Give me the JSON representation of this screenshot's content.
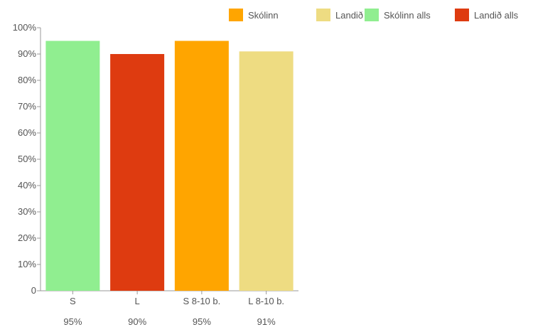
{
  "chart_data": {
    "type": "bar",
    "categories": [
      "S",
      "L",
      "S 8-10 b.",
      "L 8-10 b."
    ],
    "values": [
      95,
      90,
      95,
      91
    ],
    "value_labels": [
      "95%",
      "90%",
      "95%",
      "91%"
    ],
    "bar_series": [
      "Skólinn alls",
      "Landið alls",
      "Skólinn",
      "Landið"
    ],
    "ylim": [
      0,
      100
    ],
    "yticks": [
      0,
      10,
      20,
      30,
      40,
      50,
      60,
      70,
      80,
      90,
      100
    ],
    "ytick_labels": [
      "0",
      "10%",
      "20%",
      "30%",
      "40%",
      "50%",
      "60%",
      "70%",
      "80%",
      "90%",
      "100%"
    ],
    "legend": {
      "position": "top-right",
      "items": [
        {
          "label": "Skólinn",
          "color": "#ffa500"
        },
        {
          "label": "Landið",
          "color": "#eedc82"
        },
        {
          "label": "Skólinn alls",
          "color": "#90ee90"
        },
        {
          "label": "Landið alls",
          "color": "#de3b10"
        }
      ]
    },
    "colors": {
      "Skólinn": "#ffa500",
      "Landið": "#eedc82",
      "Skólinn alls": "#90ee90",
      "Landið alls": "#de3b10"
    },
    "grid": false
  }
}
